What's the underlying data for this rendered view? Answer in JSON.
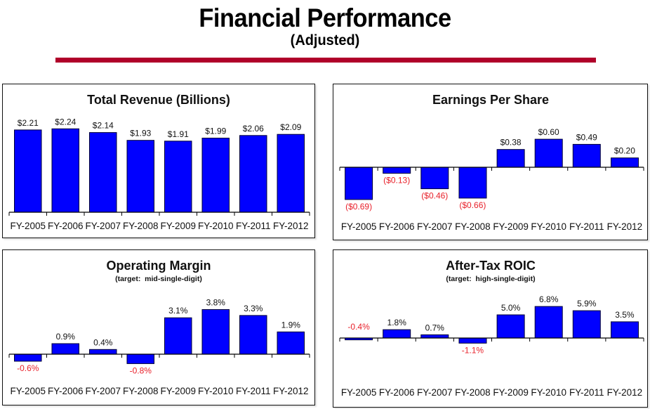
{
  "header": {
    "title": "Financial Performance",
    "subtitle": "(Adjusted)"
  },
  "colors": {
    "bar_fill": "#0000ff",
    "bar_stroke": "#000033",
    "negative_label": "#e8202a",
    "positive_label": "#111111",
    "title_rule": "#b0002a"
  },
  "chart_data": [
    {
      "id": "revenue",
      "type": "bar",
      "title": "Total Revenue (Billions)",
      "subtitle": "",
      "xlabel": "",
      "ylabel": "",
      "ylim": [
        0,
        2.5
      ],
      "grid": false,
      "legend": "none",
      "categories": [
        "FY-2005",
        "FY-2006",
        "FY-2007",
        "FY-2008",
        "FY-2009",
        "FY-2010",
        "FY-2011",
        "FY-2012"
      ],
      "values": [
        2.21,
        2.24,
        2.14,
        1.93,
        1.91,
        1.99,
        2.06,
        2.09
      ],
      "labels": [
        "$2.21",
        "$2.24",
        "$2.14",
        "$1.93",
        "$1.91",
        "$1.99",
        "$2.06",
        "$2.09"
      ],
      "unit": "USD billions"
    },
    {
      "id": "eps",
      "type": "bar",
      "title": "Earnings Per Share",
      "subtitle": "",
      "xlabel": "",
      "ylabel": "",
      "ylim": [
        -1.0,
        1.0
      ],
      "grid": false,
      "legend": "none",
      "categories": [
        "FY-2005",
        "FY-2006",
        "FY-2007",
        "FY-2008",
        "FY-2009",
        "FY-2010",
        "FY-2011",
        "FY-2012"
      ],
      "values": [
        -0.69,
        -0.13,
        -0.46,
        -0.66,
        0.38,
        0.6,
        0.49,
        0.2
      ],
      "labels": [
        "($0.69)",
        "($0.13)",
        "($0.46)",
        "($0.66)",
        "$0.38",
        "$0.60",
        "$0.49",
        "$0.20"
      ],
      "unit": "USD"
    },
    {
      "id": "opm",
      "type": "bar",
      "title": "Operating Margin",
      "subtitle": "(target:  mid-single-digit)",
      "xlabel": "",
      "ylabel": "",
      "ylim": [
        -2.0,
        5.0
      ],
      "grid": false,
      "legend": "none",
      "categories": [
        "FY-2005",
        "FY-2006",
        "FY-2007",
        "FY-2008",
        "FY-2009",
        "FY-2010",
        "FY-2011",
        "FY-2012"
      ],
      "values": [
        -0.6,
        0.9,
        0.4,
        -0.8,
        3.1,
        3.8,
        3.3,
        1.9
      ],
      "labels": [
        "-0.6%",
        "0.9%",
        "0.4%",
        "-0.8%",
        "3.1%",
        "3.8%",
        "3.3%",
        "1.9%"
      ],
      "unit": "percent"
    },
    {
      "id": "roic",
      "type": "bar",
      "title": "After-Tax ROIC",
      "subtitle": "(target:  high-single-digit)",
      "xlabel": "",
      "ylabel": "",
      "ylim": [
        -5.0,
        10.0
      ],
      "grid": false,
      "legend": "none",
      "categories": [
        "FY-2005",
        "FY-2006",
        "FY-2007",
        "FY-2008",
        "FY-2009",
        "FY-2010",
        "FY-2011",
        "FY-2012"
      ],
      "values": [
        -0.4,
        1.8,
        0.7,
        -1.1,
        5.0,
        6.8,
        5.9,
        3.5
      ],
      "labels": [
        "-0.4%",
        "1.8%",
        "0.7%",
        "-1.1%",
        "5.0%",
        "6.8%",
        "5.9%",
        "3.5%"
      ],
      "label_above_axis": [
        true,
        false,
        false,
        false,
        false,
        false,
        false,
        false
      ],
      "unit": "percent"
    }
  ]
}
